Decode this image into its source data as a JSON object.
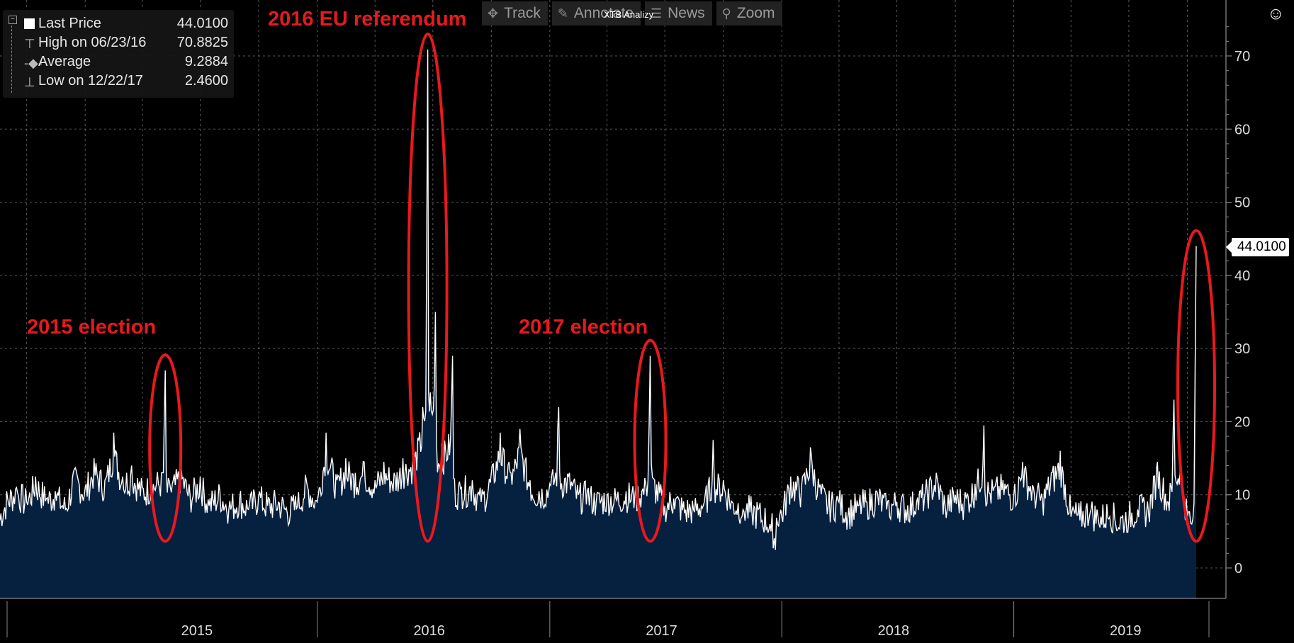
{
  "legend": {
    "last": {
      "label": "Last Price",
      "value": "44.0100"
    },
    "high": {
      "label": "High on 06/23/16",
      "value": "70.8825"
    },
    "avg": {
      "label": "Average",
      "value": "9.2884"
    },
    "low": {
      "label": "Low on 12/22/17",
      "value": "2.4600"
    }
  },
  "toolbar": {
    "track": "Track",
    "annotate": "Annotate",
    "news": "News",
    "zoom": "Zoom"
  },
  "watermark": "XTB Analizy",
  "annotations": {
    "e2015": "2015 election",
    "ref2016": "2016 EU referendum",
    "e2017": "2017 election"
  },
  "last_price_label": "44.0100",
  "colors": {
    "background": "#000000",
    "fill": "#06203f",
    "line": "#ffffff",
    "highlight": "#e8191e"
  },
  "chart_data": {
    "type": "area",
    "title": "",
    "xlabel": "",
    "ylabel": "",
    "x_range": [
      "2014-08-20",
      "2019-10-15"
    ],
    "ylim": [
      -4,
      76
    ],
    "yticks": [
      0,
      10,
      20,
      30,
      40,
      50,
      60,
      70
    ],
    "xticks": [
      "2015",
      "2016",
      "2017",
      "2018",
      "2019"
    ],
    "grid": true,
    "legend_position": "top-left",
    "series": [
      {
        "name": "Last Price",
        "points": [
          [
            "2014-08-20",
            6.5
          ],
          [
            "2014-09-01",
            9.5
          ],
          [
            "2014-09-15",
            11.0
          ],
          [
            "2014-10-01",
            9.0
          ],
          [
            "2014-10-15",
            12.5
          ],
          [
            "2014-11-01",
            9.5
          ],
          [
            "2014-11-15",
            10.5
          ],
          [
            "2014-12-01",
            8.0
          ],
          [
            "2014-12-15",
            13.5
          ],
          [
            "2015-01-01",
            11.0
          ],
          [
            "2015-01-15",
            15.0
          ],
          [
            "2015-02-01",
            12.0
          ],
          [
            "2015-02-15",
            18.5
          ],
          [
            "2015-03-01",
            12.5
          ],
          [
            "2015-03-15",
            14.0
          ],
          [
            "2015-04-01",
            11.0
          ],
          [
            "2015-04-15",
            12.0
          ],
          [
            "2015-05-01",
            13.0
          ],
          [
            "2015-05-07",
            27.0
          ],
          [
            "2015-05-15",
            11.0
          ],
          [
            "2015-06-01",
            14.0
          ],
          [
            "2015-06-15",
            10.0
          ],
          [
            "2015-07-01",
            12.5
          ],
          [
            "2015-07-15",
            8.5
          ],
          [
            "2015-08-01",
            10.5
          ],
          [
            "2015-08-15",
            8.0
          ],
          [
            "2015-09-01",
            9.5
          ],
          [
            "2015-09-15",
            8.0
          ],
          [
            "2015-10-01",
            10.0
          ],
          [
            "2015-10-15",
            8.5
          ],
          [
            "2015-11-01",
            9.0
          ],
          [
            "2015-11-15",
            7.5
          ],
          [
            "2015-12-01",
            8.5
          ],
          [
            "2015-12-15",
            12.0
          ],
          [
            "2016-01-01",
            9.0
          ],
          [
            "2016-01-15",
            18.5
          ],
          [
            "2016-02-01",
            12.0
          ],
          [
            "2016-02-15",
            15.0
          ],
          [
            "2016-03-01",
            13.0
          ],
          [
            "2016-03-15",
            14.5
          ],
          [
            "2016-04-01",
            12.0
          ],
          [
            "2016-04-15",
            14.5
          ],
          [
            "2016-05-01",
            13.0
          ],
          [
            "2016-05-15",
            15.0
          ],
          [
            "2016-06-01",
            16.0
          ],
          [
            "2016-06-15",
            22.0
          ],
          [
            "2016-06-23",
            70.88
          ],
          [
            "2016-06-27",
            24.0
          ],
          [
            "2016-07-05",
            35.0
          ],
          [
            "2016-07-15",
            17.0
          ],
          [
            "2016-08-01",
            29.0
          ],
          [
            "2016-08-15",
            11.0
          ],
          [
            "2016-09-01",
            12.0
          ],
          [
            "2016-09-15",
            9.0
          ],
          [
            "2016-10-01",
            13.0
          ],
          [
            "2016-10-15",
            18.5
          ],
          [
            "2016-11-01",
            13.0
          ],
          [
            "2016-11-15",
            19.0
          ],
          [
            "2016-12-01",
            12.0
          ],
          [
            "2016-12-15",
            10.5
          ],
          [
            "2017-01-01",
            11.5
          ],
          [
            "2017-01-15",
            22.0
          ],
          [
            "2017-02-01",
            13.0
          ],
          [
            "2017-02-15",
            10.0
          ],
          [
            "2017-03-01",
            10.5
          ],
          [
            "2017-03-15",
            9.0
          ],
          [
            "2017-04-01",
            10.0
          ],
          [
            "2017-04-15",
            9.5
          ],
          [
            "2017-05-01",
            10.5
          ],
          [
            "2017-05-15",
            10.0
          ],
          [
            "2017-06-01",
            11.5
          ],
          [
            "2017-06-08",
            29.0
          ],
          [
            "2017-06-15",
            12.0
          ],
          [
            "2017-07-01",
            8.5
          ],
          [
            "2017-07-15",
            9.5
          ],
          [
            "2017-08-01",
            7.5
          ],
          [
            "2017-08-15",
            8.0
          ],
          [
            "2017-09-01",
            9.0
          ],
          [
            "2017-09-15",
            17.5
          ],
          [
            "2017-10-01",
            12.0
          ],
          [
            "2017-10-15",
            9.0
          ],
          [
            "2017-11-01",
            8.0
          ],
          [
            "2017-11-15",
            7.5
          ],
          [
            "2017-12-01",
            6.5
          ],
          [
            "2017-12-15",
            5.0
          ],
          [
            "2017-12-22",
            2.46
          ],
          [
            "2018-01-01",
            7.0
          ],
          [
            "2018-01-15",
            12.5
          ],
          [
            "2018-02-01",
            11.0
          ],
          [
            "2018-02-15",
            16.5
          ],
          [
            "2018-03-01",
            11.0
          ],
          [
            "2018-03-15",
            8.5
          ],
          [
            "2018-04-01",
            9.0
          ],
          [
            "2018-04-15",
            7.0
          ],
          [
            "2018-05-01",
            8.5
          ],
          [
            "2018-05-15",
            9.0
          ],
          [
            "2018-06-01",
            10.0
          ],
          [
            "2018-06-15",
            8.0
          ],
          [
            "2018-07-01",
            9.0
          ],
          [
            "2018-07-15",
            8.0
          ],
          [
            "2018-08-01",
            9.0
          ],
          [
            "2018-08-15",
            10.5
          ],
          [
            "2018-09-01",
            13.0
          ],
          [
            "2018-09-15",
            8.5
          ],
          [
            "2018-10-01",
            10.0
          ],
          [
            "2018-10-15",
            9.0
          ],
          [
            "2018-11-01",
            11.5
          ],
          [
            "2018-11-15",
            19.5
          ],
          [
            "2018-12-01",
            11.0
          ],
          [
            "2018-12-15",
            12.0
          ],
          [
            "2019-01-01",
            10.0
          ],
          [
            "2019-01-15",
            14.5
          ],
          [
            "2019-02-01",
            11.0
          ],
          [
            "2019-02-15",
            9.5
          ],
          [
            "2019-03-01",
            13.0
          ],
          [
            "2019-03-15",
            16.0
          ],
          [
            "2019-04-01",
            7.0
          ],
          [
            "2019-04-15",
            6.5
          ],
          [
            "2019-05-01",
            7.5
          ],
          [
            "2019-05-15",
            6.0
          ],
          [
            "2019-06-01",
            7.0
          ],
          [
            "2019-06-15",
            5.5
          ],
          [
            "2019-07-01",
            6.5
          ],
          [
            "2019-07-15",
            8.0
          ],
          [
            "2019-08-01",
            7.5
          ],
          [
            "2019-08-15",
            14.5
          ],
          [
            "2019-09-01",
            9.0
          ],
          [
            "2019-09-10",
            23.0
          ],
          [
            "2019-09-20",
            14.0
          ],
          [
            "2019-10-01",
            7.0
          ],
          [
            "2019-10-08",
            6.0
          ],
          [
            "2019-10-15",
            44.01
          ]
        ]
      }
    ],
    "highlights": [
      {
        "label": "2015 election",
        "date": "2015-05-07"
      },
      {
        "label": "2016 EU referendum",
        "date": "2016-06-23"
      },
      {
        "label": "2017 election",
        "date": "2017-06-08"
      },
      {
        "label": "",
        "date": "2019-10-15"
      }
    ]
  }
}
